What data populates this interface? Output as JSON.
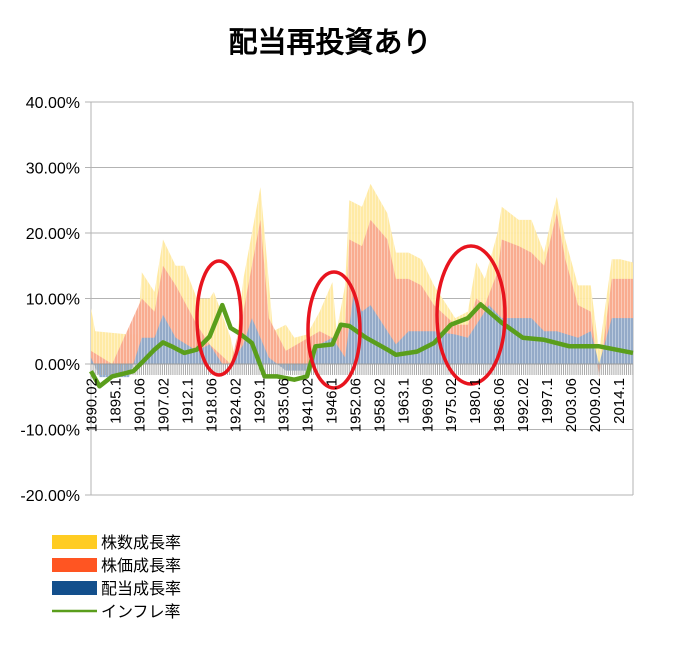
{
  "chart_data": {
    "type": "area",
    "title": "配当再投資あり",
    "xlabel": "",
    "ylabel": "",
    "xlim": [
      1890,
      2018
    ],
    "ylim": [
      -20,
      40
    ],
    "yticks": [
      -20,
      -10,
      0,
      10,
      20,
      30,
      40
    ],
    "ytick_labels": [
      "-20.00%",
      "-10.00%",
      "0.00%",
      "10.00%",
      "20.00%",
      "30.00%",
      "40.00%"
    ],
    "xtick_labels": [
      "1890.02",
      "1895.1",
      "1901.06",
      "1907.02",
      "1912.1",
      "1918.06",
      "1924.02",
      "1929.1",
      "1935.06",
      "1941.02",
      "1946.1",
      "1952.06",
      "1958.02",
      "1963.1",
      "1969.06",
      "1975.02",
      "1980.1",
      "1986.06",
      "1992.02",
      "1997.1",
      "2003.06",
      "2009.02",
      "2014.1"
    ],
    "grid": true,
    "legend_position": "bottom-left",
    "series": [
      {
        "name": "株数成長率",
        "color": "#ffcc22",
        "fill": "#ffe9a0",
        "points": [
          [
            1890,
            8.5
          ],
          [
            1891,
            5
          ],
          [
            1899,
            4.5
          ],
          [
            1901,
            4.5
          ],
          [
            1902,
            14
          ],
          [
            1905,
            11
          ],
          [
            1907,
            19
          ],
          [
            1910,
            15
          ],
          [
            1912,
            15
          ],
          [
            1915,
            10
          ],
          [
            1918,
            10
          ],
          [
            1919,
            11
          ],
          [
            1923,
            4
          ],
          [
            1924,
            1
          ],
          [
            1926,
            13
          ],
          [
            1930,
            27
          ],
          [
            1931,
            20
          ],
          [
            1933,
            5
          ],
          [
            1936,
            6
          ],
          [
            1938,
            4
          ],
          [
            1941,
            4.5
          ],
          [
            1944,
            8
          ],
          [
            1947,
            12.5
          ],
          [
            1948,
            5
          ],
          [
            1950,
            12
          ],
          [
            1951,
            25
          ],
          [
            1954,
            24
          ],
          [
            1956,
            27.5
          ],
          [
            1960,
            23
          ],
          [
            1962,
            17
          ],
          [
            1965,
            17
          ],
          [
            1968,
            16
          ],
          [
            1971,
            12
          ],
          [
            1976,
            7
          ],
          [
            1979,
            8
          ],
          [
            1981,
            15.5
          ],
          [
            1983,
            13
          ],
          [
            1986,
            20
          ],
          [
            1987,
            24
          ],
          [
            1991,
            22
          ],
          [
            1994,
            22
          ],
          [
            1997,
            17
          ],
          [
            1999,
            23
          ],
          [
            2000,
            25.5
          ],
          [
            2002,
            19
          ],
          [
            2005,
            12
          ],
          [
            2008,
            12
          ],
          [
            2010,
            2
          ],
          [
            2013,
            16
          ],
          [
            2015,
            16
          ],
          [
            2018,
            15.5
          ]
        ]
      },
      {
        "name": "株価成長率",
        "color": "#ff5522",
        "fill": "#f9a98e",
        "points": [
          [
            1890,
            2
          ],
          [
            1895,
            0
          ],
          [
            1902,
            10
          ],
          [
            1905,
            8
          ],
          [
            1907,
            15
          ],
          [
            1910,
            12
          ],
          [
            1915,
            6
          ],
          [
            1918,
            3
          ],
          [
            1923,
            0
          ],
          [
            1926,
            8
          ],
          [
            1930,
            22
          ],
          [
            1932,
            7
          ],
          [
            1936,
            2
          ],
          [
            1944,
            5
          ],
          [
            1947,
            4
          ],
          [
            1950,
            6
          ],
          [
            1951,
            19
          ],
          [
            1954,
            18
          ],
          [
            1956,
            22
          ],
          [
            1960,
            19
          ],
          [
            1962,
            13
          ],
          [
            1965,
            13
          ],
          [
            1968,
            12
          ],
          [
            1971,
            9
          ],
          [
            1976,
            6
          ],
          [
            1979,
            6
          ],
          [
            1981,
            10
          ],
          [
            1983,
            9
          ],
          [
            1986,
            14
          ],
          [
            1987,
            19
          ],
          [
            1991,
            18
          ],
          [
            1994,
            17
          ],
          [
            1997,
            15
          ],
          [
            2000,
            23
          ],
          [
            2002,
            16
          ],
          [
            2005,
            9
          ],
          [
            2008,
            8
          ],
          [
            2010,
            -2
          ],
          [
            2013,
            13
          ],
          [
            2018,
            13
          ]
        ]
      },
      {
        "name": "配当成長率",
        "color": "#134f8c",
        "fill": "#8eaacb",
        "points": [
          [
            1890,
            1
          ],
          [
            1892,
            -2
          ],
          [
            1899,
            -2
          ],
          [
            1902,
            4
          ],
          [
            1905,
            4
          ],
          [
            1907,
            7.5
          ],
          [
            1910,
            4
          ],
          [
            1915,
            2
          ],
          [
            1918,
            3
          ],
          [
            1921,
            0
          ],
          [
            1923,
            0
          ],
          [
            1926,
            3
          ],
          [
            1928,
            7
          ],
          [
            1932,
            1
          ],
          [
            1936,
            -1
          ],
          [
            1941,
            -1
          ],
          [
            1944,
            3
          ],
          [
            1947,
            4
          ],
          [
            1950,
            1
          ],
          [
            1952,
            10.5
          ],
          [
            1954,
            8
          ],
          [
            1956,
            9
          ],
          [
            1960,
            5
          ],
          [
            1962,
            3
          ],
          [
            1965,
            5
          ],
          [
            1971,
            5
          ],
          [
            1976,
            4.5
          ],
          [
            1979,
            4
          ],
          [
            1981,
            6
          ],
          [
            1984,
            9
          ],
          [
            1987,
            7
          ],
          [
            1994,
            7
          ],
          [
            1997,
            5
          ],
          [
            2000,
            5
          ],
          [
            2005,
            4
          ],
          [
            2008,
            5
          ],
          [
            2010,
            0
          ],
          [
            2013,
            7
          ],
          [
            2018,
            7
          ]
        ]
      },
      {
        "name": "インフレ率",
        "color": "#5a9e1c",
        "type": "line",
        "points": [
          [
            1890,
            -1.1
          ],
          [
            1892,
            -3.4
          ],
          [
            1895,
            -1.9
          ],
          [
            1900,
            -1.1
          ],
          [
            1902,
            0.2
          ],
          [
            1905,
            2.2
          ],
          [
            1907,
            3.3
          ],
          [
            1909,
            2.7
          ],
          [
            1912,
            1.7
          ],
          [
            1915,
            2.2
          ],
          [
            1918,
            4.2
          ],
          [
            1921,
            9.0
          ],
          [
            1923,
            5.5
          ],
          [
            1925,
            4.7
          ],
          [
            1928,
            3.2
          ],
          [
            1931,
            -1.9
          ],
          [
            1934,
            -1.9
          ],
          [
            1938,
            -2.4
          ],
          [
            1941,
            -1.9
          ],
          [
            1943,
            2.7
          ],
          [
            1947,
            3.0
          ],
          [
            1949,
            6.0
          ],
          [
            1951,
            5.8
          ],
          [
            1955,
            4.0
          ],
          [
            1960,
            2.2
          ],
          [
            1962,
            1.4
          ],
          [
            1967,
            1.9
          ],
          [
            1971,
            3.2
          ],
          [
            1975,
            6.0
          ],
          [
            1979,
            7.0
          ],
          [
            1982,
            9.1
          ],
          [
            1987,
            6.3
          ],
          [
            1992,
            4.0
          ],
          [
            1997,
            3.7
          ],
          [
            2003,
            2.7
          ],
          [
            2010,
            2.7
          ],
          [
            2018,
            1.7
          ]
        ]
      }
    ]
  }
}
